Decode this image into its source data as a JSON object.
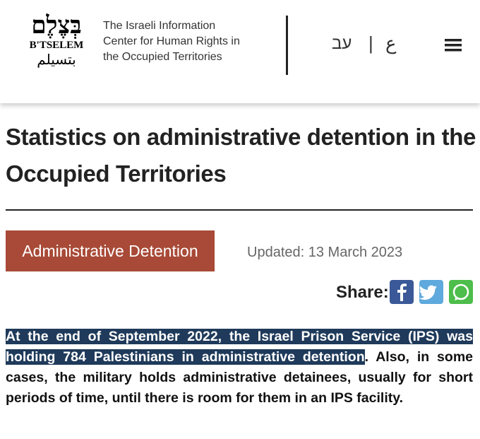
{
  "header": {
    "logo_hebrew": "בְּצֶלֶם",
    "logo_latin": "B'TSELEM",
    "logo_arabic": "بتسيلم",
    "tagline": "The Israeli Information Center for Human Rights in the Occupied Territories",
    "lang_hebrew": "עב",
    "lang_separator": "|",
    "lang_arabic": "ع"
  },
  "article": {
    "title": "Statistics on administrative detention in the Occupied Territories",
    "tag": "Administrative Detention",
    "updated": "Updated: 13 March 2023",
    "share_label": "Share:",
    "body_highlighted": "At the end of September 2022, the Israel Prison Service (IPS) was holding 784 Palestinians in administrative detention",
    "body_rest": ". Also, in some cases, the military holds administrative detainees, usually for short periods of time, until there is room for them in an IPS facility."
  }
}
